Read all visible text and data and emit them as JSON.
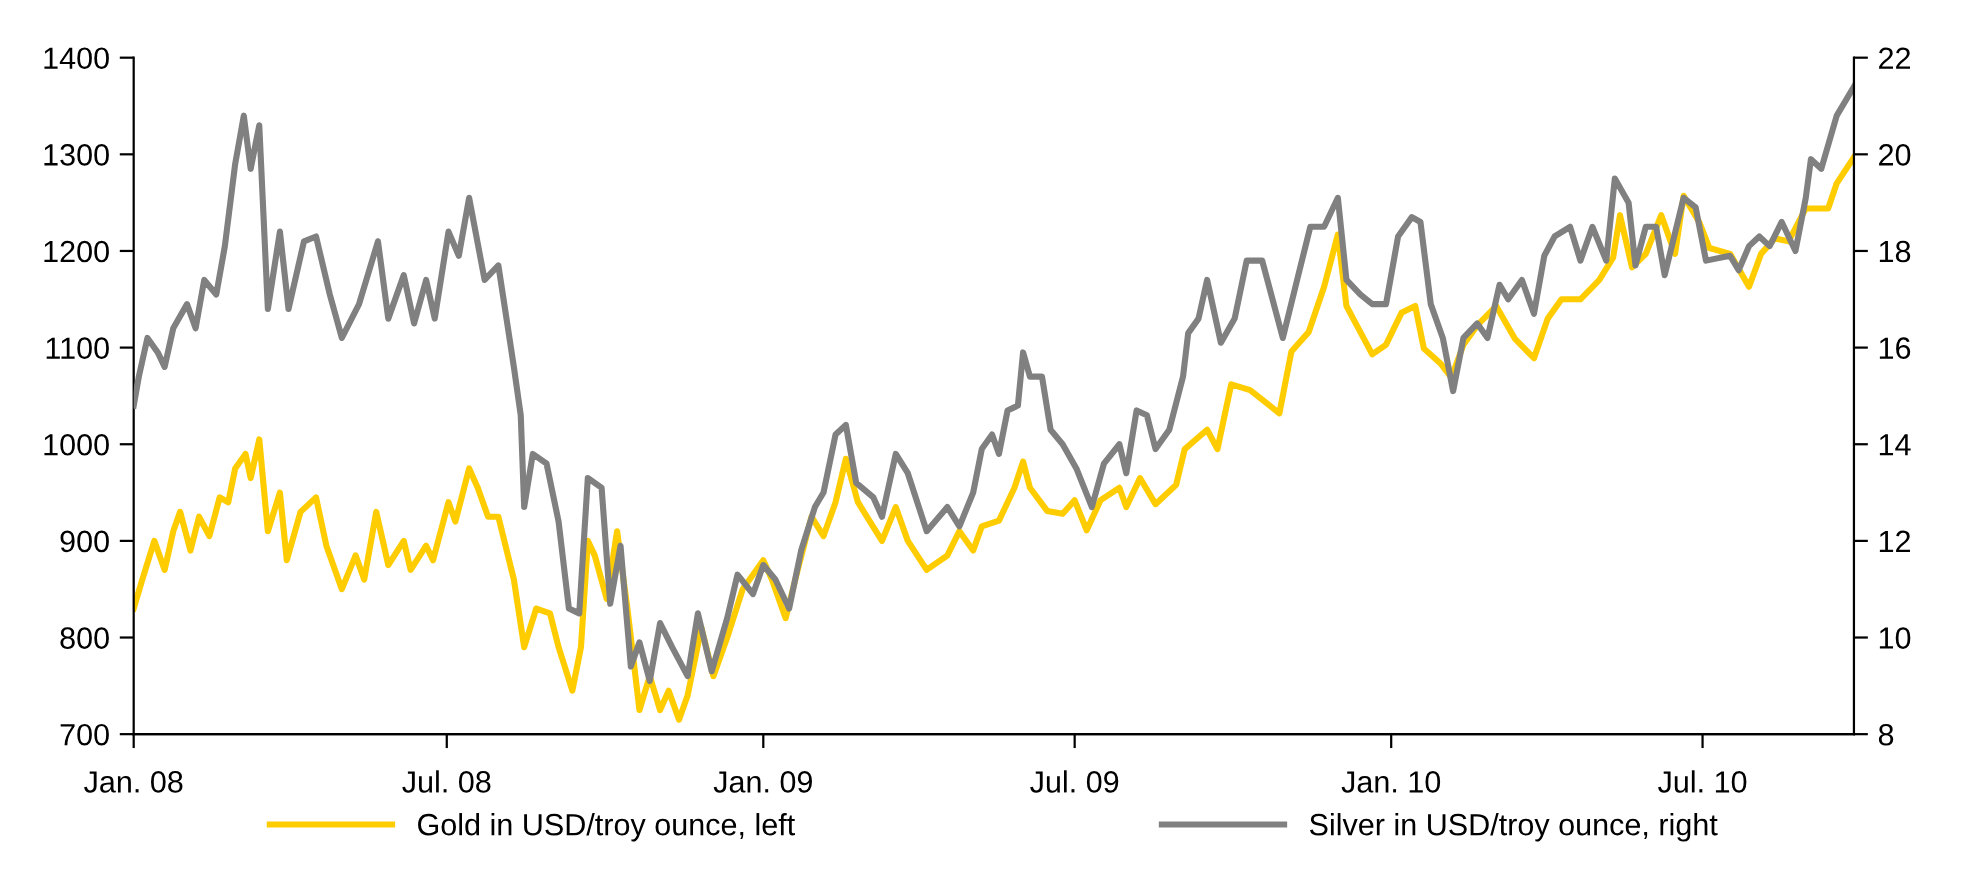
{
  "chart_data": {
    "type": "line",
    "xlim": [
      "2008-01-01",
      "2010-09-27"
    ],
    "xticks": [
      {
        "value": "2008-01-01",
        "label": "Jan. 08"
      },
      {
        "value": "2008-07-01",
        "label": "Jul. 08"
      },
      {
        "value": "2009-01-01",
        "label": "Jan. 09"
      },
      {
        "value": "2009-07-01",
        "label": "Jul. 09"
      },
      {
        "value": "2010-01-01",
        "label": "Jan. 10"
      },
      {
        "value": "2010-07-01",
        "label": "Jul. 10"
      }
    ],
    "ylim": [
      700,
      1400
    ],
    "yticks": [
      700,
      800,
      900,
      1000,
      1100,
      1200,
      1300,
      1400
    ],
    "y2lim": [
      8,
      22
    ],
    "y2ticks": [
      8,
      10,
      12,
      14,
      16,
      18,
      20,
      22
    ],
    "grid": false,
    "legend": "bottom",
    "line_style": "solid",
    "marker": "none",
    "series": [
      {
        "name": "Gold in USD/troy ounce, left",
        "color": "#ffcc00",
        "x": [
          "2008-01-01",
          "2008-01-06",
          "2008-01-13",
          "2008-01-19",
          "2008-01-24",
          "2008-01-28",
          "2008-02-03",
          "2008-02-08",
          "2008-02-14",
          "2008-02-20",
          "2008-02-25",
          "2008-02-29",
          "2008-03-06",
          "2008-03-09",
          "2008-03-14",
          "2008-03-19",
          "2008-03-26",
          "2008-03-30",
          "2008-04-07",
          "2008-04-16",
          "2008-04-22",
          "2008-05-01",
          "2008-05-09",
          "2008-05-14",
          "2008-05-21",
          "2008-05-28",
          "2008-06-06",
          "2008-06-10",
          "2008-06-19",
          "2008-06-23",
          "2008-07-02",
          "2008-07-06",
          "2008-07-14",
          "2008-07-19",
          "2008-07-25",
          "2008-07-31",
          "2008-08-09",
          "2008-08-15",
          "2008-08-22",
          "2008-08-30",
          "2008-09-04",
          "2008-09-12",
          "2008-09-17",
          "2008-09-21",
          "2008-09-25",
          "2008-10-02",
          "2008-10-08",
          "2008-10-14",
          "2008-10-21",
          "2008-10-27",
          "2008-11-02",
          "2008-11-07",
          "2008-11-13",
          "2008-11-18",
          "2008-11-26",
          "2008-12-03",
          "2008-12-11",
          "2008-12-20",
          "2009-01-01",
          "2009-01-06",
          "2009-01-14",
          "2009-01-21",
          "2009-01-29",
          "2009-02-05",
          "2009-02-12",
          "2009-02-18",
          "2009-02-25",
          "2009-03-04",
          "2009-03-11",
          "2009-03-19",
          "2009-03-26",
          "2009-04-06",
          "2009-04-18",
          "2009-04-25",
          "2009-05-03",
          "2009-05-08",
          "2009-05-18",
          "2009-05-27",
          "2009-06-01",
          "2009-06-05",
          "2009-06-15",
          "2009-06-24",
          "2009-07-01",
          "2009-07-08",
          "2009-07-16",
          "2009-07-27",
          "2009-07-31",
          "2009-08-08",
          "2009-08-17",
          "2009-08-29",
          "2009-09-03",
          "2009-09-16",
          "2009-09-22",
          "2009-09-30",
          "2009-10-11",
          "2009-10-28",
          "2009-11-04",
          "2009-11-14",
          "2009-11-23",
          "2009-12-01",
          "2009-12-06",
          "2009-12-12",
          "2009-12-21",
          "2009-12-29",
          "2010-01-07",
          "2010-01-15",
          "2010-01-20",
          "2010-01-30",
          "2010-02-05",
          "2010-02-12",
          "2010-02-20",
          "2010-03-03",
          "2010-03-14",
          "2010-03-25",
          "2010-04-02",
          "2010-04-10",
          "2010-04-21",
          "2010-05-02",
          "2010-05-10",
          "2010-05-14",
          "2010-05-21",
          "2010-05-29",
          "2010-06-07",
          "2010-06-15",
          "2010-06-20",
          "2010-06-29",
          "2010-07-05",
          "2010-07-17",
          "2010-07-28",
          "2010-08-04",
          "2010-08-12",
          "2010-08-20",
          "2010-08-30",
          "2010-09-12",
          "2010-09-17",
          "2010-09-27"
        ],
        "values": [
          830,
          860,
          900,
          870,
          910,
          930,
          890,
          925,
          905,
          945,
          940,
          975,
          990,
          965,
          1005,
          910,
          950,
          880,
          930,
          945,
          895,
          850,
          885,
          860,
          930,
          875,
          900,
          870,
          895,
          880,
          940,
          920,
          975,
          955,
          925,
          925,
          860,
          790,
          830,
          825,
          790,
          745,
          790,
          900,
          885,
          840,
          910,
          830,
          725,
          760,
          725,
          745,
          715,
          740,
          810,
          760,
          800,
          850,
          880,
          860,
          820,
          870,
          925,
          905,
          940,
          985,
          940,
          920,
          900,
          935,
          900,
          870,
          885,
          910,
          890,
          915,
          921,
          955,
          982,
          955,
          931,
          928,
          942,
          911,
          942,
          955,
          935,
          965,
          938,
          958,
          995,
          1015,
          995,
          1062,
          1056,
          1032,
          1096,
          1116,
          1163,
          1217,
          1143,
          1123,
          1093,
          1103,
          1136,
          1143,
          1099,
          1083,
          1069,
          1103,
          1123,
          1143,
          1109,
          1089,
          1130,
          1150,
          1150,
          1170,
          1193,
          1237,
          1183,
          1197,
          1237,
          1197,
          1257,
          1230,
          1203,
          1197,
          1163,
          1197,
          1213,
          1210,
          1244,
          1244,
          1270,
          1297
        ]
      },
      {
        "name": "Silver in USD/troy ounce, right",
        "color": "#808080",
        "axis": "y2",
        "x": [
          "2008-01-01",
          "2008-01-04",
          "2008-01-09",
          "2008-01-15",
          "2008-01-19",
          "2008-01-24",
          "2008-02-01",
          "2008-02-06",
          "2008-02-11",
          "2008-02-18",
          "2008-02-23",
          "2008-02-29",
          "2008-03-05",
          "2008-03-09",
          "2008-03-14",
          "2008-03-19",
          "2008-03-26",
          "2008-03-31",
          "2008-04-09",
          "2008-04-16",
          "2008-04-24",
          "2008-05-01",
          "2008-05-11",
          "2008-05-22",
          "2008-05-28",
          "2008-06-06",
          "2008-06-12",
          "2008-06-19",
          "2008-06-24",
          "2008-07-02",
          "2008-07-08",
          "2008-07-14",
          "2008-07-23",
          "2008-07-31",
          "2008-08-09",
          "2008-08-13",
          "2008-08-15",
          "2008-08-20",
          "2008-08-28",
          "2008-09-04",
          "2008-09-10",
          "2008-09-16",
          "2008-09-21",
          "2008-09-29",
          "2008-10-04",
          "2008-10-10",
          "2008-10-16",
          "2008-10-21",
          "2008-10-27",
          "2008-11-02",
          "2008-11-09",
          "2008-11-18",
          "2008-11-24",
          "2008-12-02",
          "2008-12-11",
          "2008-12-17",
          "2008-12-26",
          "2009-01-01",
          "2009-01-08",
          "2009-01-16",
          "2009-01-23",
          "2009-01-31",
          "2009-02-05",
          "2009-02-12",
          "2009-02-18",
          "2009-02-24",
          "2009-03-06",
          "2009-03-11",
          "2009-03-19",
          "2009-03-26",
          "2009-04-06",
          "2009-04-18",
          "2009-04-25",
          "2009-05-03",
          "2009-05-08",
          "2009-05-14",
          "2009-05-18",
          "2009-05-23",
          "2009-05-29",
          "2009-06-01",
          "2009-06-05",
          "2009-06-12",
          "2009-06-17",
          "2009-06-24",
          "2009-07-02",
          "2009-07-11",
          "2009-07-18",
          "2009-07-27",
          "2009-07-31",
          "2009-08-06",
          "2009-08-12",
          "2009-08-17",
          "2009-08-25",
          "2009-09-02",
          "2009-09-05",
          "2009-09-11",
          "2009-09-16",
          "2009-09-24",
          "2009-10-02",
          "2009-10-09",
          "2009-10-18",
          "2009-10-30",
          "2009-11-08",
          "2009-11-15",
          "2009-11-23",
          "2009-12-01",
          "2009-12-06",
          "2009-12-14",
          "2009-12-21",
          "2009-12-29",
          "2010-01-05",
          "2010-01-13",
          "2010-01-18",
          "2010-01-24",
          "2010-01-31",
          "2010-02-06",
          "2010-02-12",
          "2010-02-20",
          "2010-02-26",
          "2010-03-05",
          "2010-03-10",
          "2010-03-18",
          "2010-03-25",
          "2010-03-31",
          "2010-04-06",
          "2010-04-15",
          "2010-04-21",
          "2010-04-28",
          "2010-05-06",
          "2010-05-11",
          "2010-05-19",
          "2010-05-23",
          "2010-05-29",
          "2010-06-04",
          "2010-06-09",
          "2010-06-20",
          "2010-06-27",
          "2010-07-03",
          "2010-07-17",
          "2010-07-22",
          "2010-07-28",
          "2010-08-03",
          "2010-08-09",
          "2010-08-16",
          "2010-08-24",
          "2010-08-30",
          "2010-09-02",
          "2010-09-08",
          "2010-09-17",
          "2010-09-27"
        ],
        "values": [
          14.8,
          15.4,
          16.2,
          15.9,
          15.6,
          16.4,
          16.9,
          16.4,
          17.4,
          17.1,
          18.1,
          19.8,
          20.8,
          19.7,
          20.6,
          16.8,
          18.4,
          16.8,
          18.2,
          18.3,
          17.1,
          16.2,
          16.9,
          18.2,
          16.6,
          17.5,
          16.5,
          17.4,
          16.6,
          18.4,
          17.9,
          19.1,
          17.4,
          17.7,
          15.6,
          14.6,
          12.7,
          13.8,
          13.6,
          12.4,
          10.6,
          10.5,
          13.3,
          13.1,
          10.7,
          11.9,
          9.4,
          9.9,
          9.1,
          10.3,
          9.8,
          9.2,
          10.5,
          9.3,
          10.4,
          11.3,
          10.9,
          11.5,
          11.2,
          10.6,
          11.8,
          12.7,
          13.0,
          14.2,
          14.4,
          13.2,
          12.9,
          12.5,
          13.8,
          13.4,
          12.2,
          12.7,
          12.3,
          13.0,
          13.9,
          14.2,
          13.8,
          14.7,
          14.8,
          15.9,
          15.4,
          15.4,
          14.3,
          14.0,
          13.5,
          12.7,
          13.6,
          14.0,
          13.4,
          14.7,
          14.6,
          13.9,
          14.3,
          15.4,
          16.3,
          16.6,
          17.4,
          16.1,
          16.6,
          17.8,
          17.8,
          16.2,
          17.5,
          18.5,
          18.5,
          19.1,
          17.4,
          17.1,
          16.9,
          16.9,
          18.3,
          18.7,
          18.6,
          16.9,
          16.2,
          15.1,
          16.2,
          16.5,
          16.2,
          17.3,
          17.0,
          17.4,
          16.7,
          17.9,
          18.3,
          18.5,
          17.8,
          18.5,
          17.8,
          19.5,
          19.0,
          17.7,
          18.5,
          18.5,
          17.5,
          19.1,
          18.9,
          17.8,
          17.9,
          17.6,
          18.1,
          18.3,
          18.1,
          18.6,
          18.0,
          19.1,
          19.9,
          19.7,
          20.8,
          21.4
        ]
      }
    ]
  }
}
